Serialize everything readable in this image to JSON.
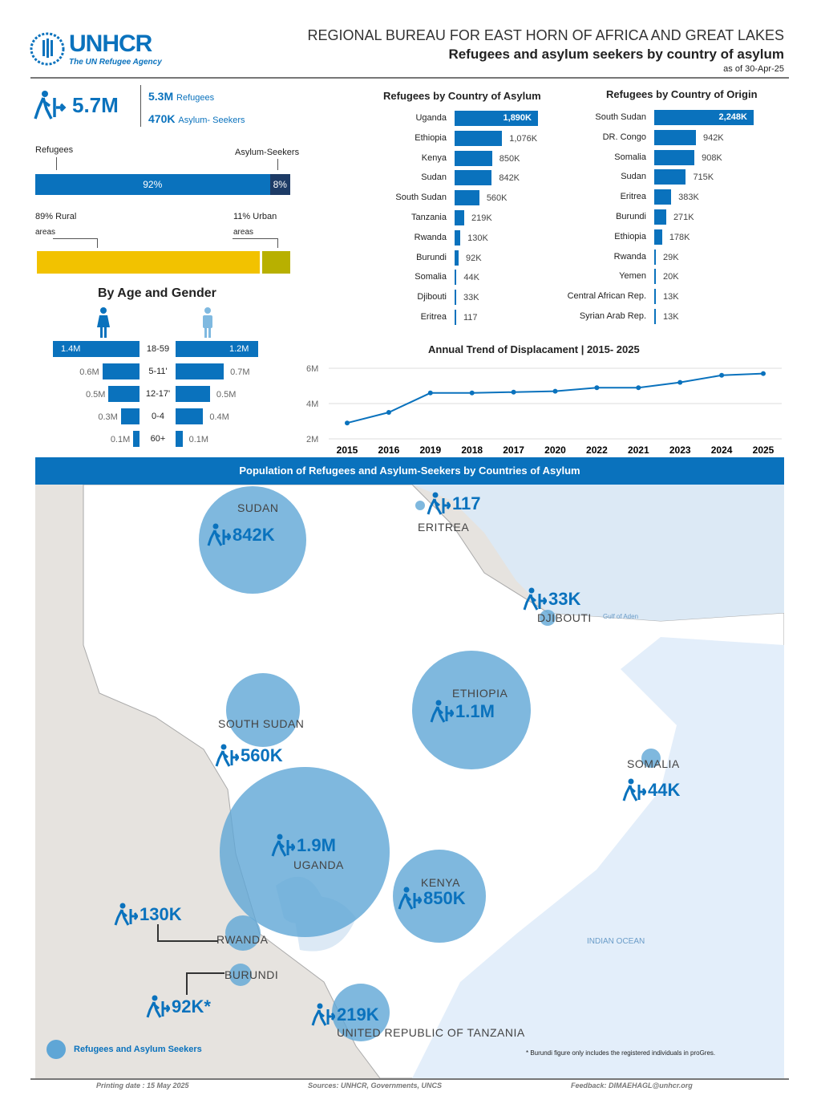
{
  "header": {
    "logo": "UNHCR",
    "logo_sub": "The UN Refugee Agency",
    "bureau": "REGIONAL BUREAU FOR EAST HORN OF AFRICA AND GREAT LAKES",
    "title": "Refugees and asylum seekers by country of asylum",
    "as_of": "as of 30-Apr-25"
  },
  "summary": {
    "total": "5.7M",
    "refugees_value": "5.3M",
    "refugees_label": "Refugees",
    "asylum_value": "470K",
    "asylum_label": "Asylum- Seekers"
  },
  "split": {
    "left_label": "Refugees",
    "right_label": "Asylum-Seekers",
    "refugees_pct": 92,
    "asylum_pct": 8,
    "refugees_text": "92%",
    "asylum_text": "8%"
  },
  "location": {
    "rural_text": "89% Rural",
    "rural_sub": "areas",
    "urban_text": "11% Urban",
    "urban_sub": "areas",
    "rural_pct": 89,
    "urban_pct": 11
  },
  "age_gender": {
    "title": "By Age  and Gender",
    "rows": [
      {
        "age": "18-59",
        "female": "1.4M",
        "male": "1.2M",
        "f": 1.4,
        "m": 1.2
      },
      {
        "age": "5-11'",
        "female": "0.6M",
        "male": "0.7M",
        "f": 0.6,
        "m": 0.7
      },
      {
        "age": "12-17'",
        "female": "0.5M",
        "male": "0.5M",
        "f": 0.5,
        "m": 0.5
      },
      {
        "age": "0-4",
        "female": "0.3M",
        "male": "0.4M",
        "f": 0.3,
        "m": 0.4
      },
      {
        "age": "60+",
        "female": "0.1M",
        "male": "0.1M",
        "f": 0.1,
        "m": 0.1
      }
    ]
  },
  "chart_data": [
    {
      "type": "bar",
      "title": "Refugees by Country of Asylum",
      "categories": [
        "Uganda",
        "Ethiopia",
        "Kenya",
        "Sudan",
        "South Sudan",
        "Tanzania",
        "Rwanda",
        "Burundi",
        "Somalia",
        "Djibouti",
        "Eritrea"
      ],
      "values": [
        1890000,
        1076000,
        850000,
        842000,
        560000,
        219000,
        130000,
        92000,
        44000,
        33000,
        117
      ],
      "labels": [
        "1,890K",
        "1,076K",
        "850K",
        "842K",
        "560K",
        "219K",
        "130K",
        "92K",
        "44K",
        "33K",
        "117"
      ]
    },
    {
      "type": "bar",
      "title": "Refugees by Country of Origin",
      "categories": [
        "South Sudan",
        "DR. Congo",
        "Somalia",
        "Sudan",
        "Eritrea",
        "Burundi",
        "Ethiopia",
        "Rwanda",
        "Yemen",
        "Central African Rep.",
        "Syrian Arab Rep."
      ],
      "values": [
        2248000,
        942000,
        908000,
        715000,
        383000,
        271000,
        178000,
        29000,
        20000,
        13000,
        13000
      ],
      "labels": [
        "2,248K",
        "942K",
        "908K",
        "715K",
        "383K",
        "271K",
        "178K",
        "29K",
        "20K",
        "13K",
        "13K"
      ]
    },
    {
      "type": "line",
      "title": "Annual Trend of Displacament | 2015- 2025",
      "x": [
        "2015",
        "2016",
        "2019",
        "2018",
        "2017",
        "2020",
        "2022",
        "2021",
        "2023",
        "2024",
        "2025"
      ],
      "values": [
        2.9,
        3.5,
        4.6,
        4.6,
        4.65,
        4.7,
        4.9,
        4.9,
        5.2,
        5.6,
        5.7
      ],
      "ylim": [
        2,
        6
      ],
      "yticks": [
        "2M",
        "4M",
        "6M"
      ],
      "grid": true
    }
  ],
  "map": {
    "title": "Population of Refugees and Asylum-Seekers by Countries of Asylum",
    "countries": [
      {
        "name": "SUDAN",
        "value": "842K"
      },
      {
        "name": "ERITREA",
        "value": "117"
      },
      {
        "name": "DJIBOUTI",
        "value": "33K"
      },
      {
        "name": "ETHIOPIA",
        "value": "1.1M"
      },
      {
        "name": "SOUTH SUDAN",
        "value": "560K"
      },
      {
        "name": "SOMALIA",
        "value": "44K"
      },
      {
        "name": "UGANDA",
        "value": "1.9M"
      },
      {
        "name": "KENYA",
        "value": "850K"
      },
      {
        "name": "RWANDA",
        "value": "130K"
      },
      {
        "name": "BURUNDI",
        "value": "92K*"
      },
      {
        "name": "UNITED REPUBLIC OF TANZANIA",
        "value": "219K"
      }
    ],
    "gulf": "Gulf of Aden",
    "ocean": "INDIAN OCEAN",
    "legend": "Refugees and Asylum Seekers",
    "note": "* Burundi figure only includes the registered individuals in proGres."
  },
  "footer": {
    "printing": "Printing date : 15 May 2025",
    "sources": "Sources: UNHCR, Governments, UNCS",
    "feedback": "Feedback: DIMAEHAGL@unhcr.org"
  },
  "colors": {
    "blue": "#0a72bd",
    "dark": "#1d3b66",
    "rural": "#f2c200",
    "urban": "#b8b000",
    "circle": "#5fa6d6"
  }
}
